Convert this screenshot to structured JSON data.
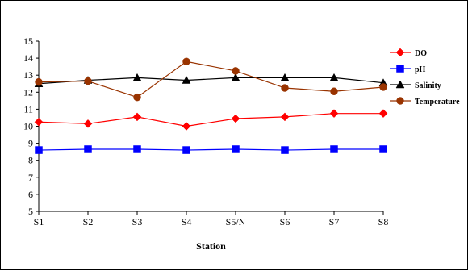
{
  "chart_data": {
    "type": "line",
    "title": "",
    "xlabel": "Station",
    "ylabel": "",
    "categories": [
      "S1",
      "S2",
      "S3",
      "S4",
      "S5/N",
      "S6",
      "S7",
      "S8"
    ],
    "ylim": [
      5,
      15
    ],
    "yticks": [
      5,
      6,
      7,
      8,
      9,
      10,
      11,
      12,
      13,
      14,
      15
    ],
    "grid": false,
    "legend_position": "right",
    "series": [
      {
        "name": "DO",
        "color": "#ff0000",
        "marker": "diamond",
        "values": [
          10.25,
          10.15,
          10.55,
          10.0,
          10.45,
          10.55,
          10.75,
          10.75
        ]
      },
      {
        "name": "pH",
        "color": "#0000ff",
        "marker": "square",
        "values": [
          8.6,
          8.65,
          8.65,
          8.6,
          8.65,
          8.6,
          8.65,
          8.65
        ]
      },
      {
        "name": "Salinity",
        "color": "#000000",
        "marker": "triangle",
        "values": [
          12.5,
          12.7,
          12.85,
          12.7,
          12.85,
          12.85,
          12.85,
          12.55
        ]
      },
      {
        "name": "Temperature",
        "color": "#993300",
        "marker": "circle",
        "values": [
          12.6,
          12.65,
          11.7,
          13.8,
          13.25,
          12.25,
          12.05,
          12.3
        ]
      }
    ]
  }
}
